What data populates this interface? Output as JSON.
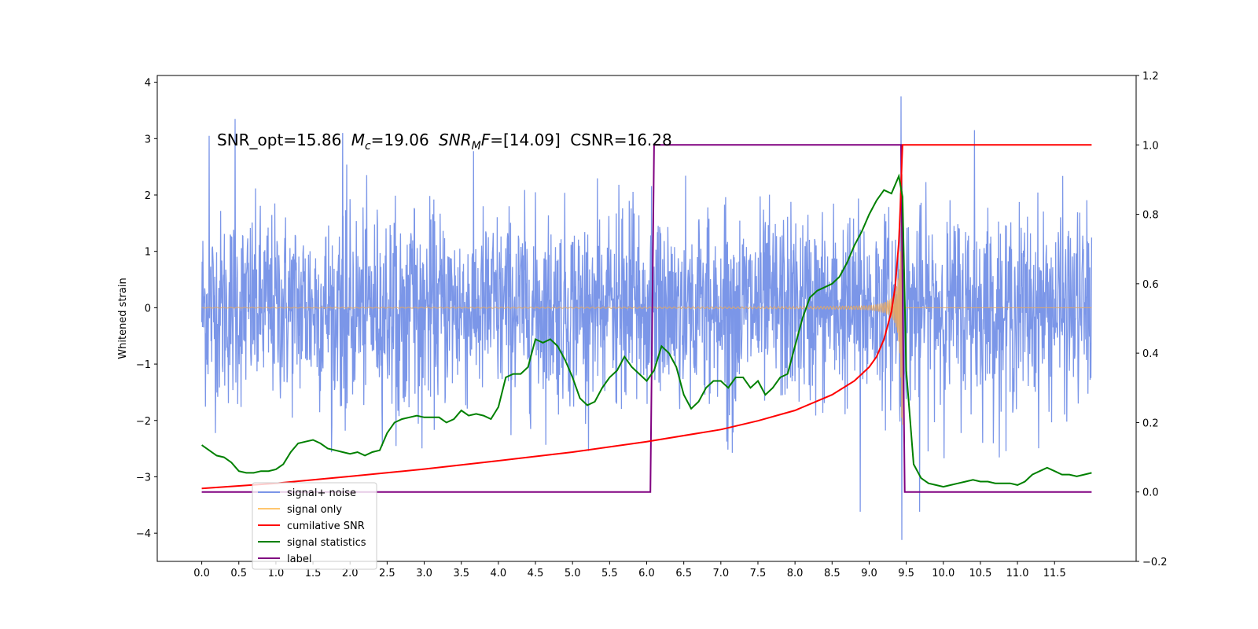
{
  "chart_data": {
    "type": "line",
    "annotation": {
      "snr_opt": "SNR_opt=15.86",
      "mc_symbol": "M",
      "mc_sub": "c",
      "mc_value": "=19.06",
      "snrmf_symbol": "SNR",
      "snrmf_sub": "M",
      "snrmf_f": "F",
      "snrmf_value": "=[14.09]",
      "csnr": "CSNR=16.28"
    },
    "ylabel_left": "Whitened strain",
    "xlabel": "",
    "x_ticks": [
      "0.0",
      "0.5",
      "1.0",
      "1.5",
      "2.0",
      "2.5",
      "3.0",
      "3.5",
      "4.0",
      "4.5",
      "5.0",
      "5.5",
      "6.0",
      "6.5",
      "7.0",
      "7.5",
      "8.0",
      "8.5",
      "9.0",
      "9.5",
      "10.0",
      "10.5",
      "11.0",
      "11.5"
    ],
    "xlim": [
      -0.6,
      12.6
    ],
    "ylim_left": [
      -4.5,
      4.12
    ],
    "y_ticks_left": [
      -4,
      -3,
      -2,
      -1,
      0,
      1,
      2,
      3,
      4
    ],
    "ylim_right": [
      -0.2,
      1.2
    ],
    "y_ticks_right": [
      "-0.2",
      "0.0",
      "0.2",
      "0.4",
      "0.6",
      "0.8",
      "1.0",
      "1.2"
    ],
    "legend": {
      "placement": "lower-left",
      "entries": [
        {
          "label": "signal+ noise",
          "color": "#7b96e8"
        },
        {
          "label": "signal only",
          "color": "#ffc66e"
        },
        {
          "label": "cumilative SNR",
          "color": "#ff0000"
        },
        {
          "label": "signal statistics",
          "color": "#008000"
        },
        {
          "label": "label",
          "color": "#800080"
        }
      ]
    },
    "series": [
      {
        "name": "signal+ noise",
        "axis": "left",
        "color": "#7b96e8",
        "x_range": [
          0,
          12.0
        ],
        "points": 2400,
        "noise_std": 0.85,
        "spikes": [
          [
            0.1,
            3.05
          ],
          [
            0.45,
            3.35
          ],
          [
            1.9,
            3.1
          ],
          [
            9.43,
            3.75
          ],
          [
            10.42,
            3.15
          ],
          [
            9.44,
            -4.12
          ],
          [
            8.88,
            -3.62
          ],
          [
            9.68,
            -3.62
          ]
        ]
      },
      {
        "name": "signal only",
        "axis": "left",
        "color": "#e8a860",
        "chirp_merger_time": 9.45,
        "peak_amplitude": 2.4
      },
      {
        "name": "cumilative SNR",
        "axis": "right",
        "color": "#ff0000",
        "x": [
          0,
          1,
          2,
          3,
          4,
          5,
          6,
          7,
          7.5,
          8,
          8.5,
          8.8,
          9.0,
          9.1,
          9.2,
          9.3,
          9.35,
          9.4,
          9.42,
          9.44,
          9.45,
          12.0
        ],
        "y": [
          0.01,
          0.025,
          0.045,
          0.066,
          0.09,
          0.115,
          0.145,
          0.18,
          0.205,
          0.235,
          0.28,
          0.32,
          0.36,
          0.39,
          0.44,
          0.52,
          0.59,
          0.72,
          0.82,
          0.95,
          1.0,
          1.0
        ]
      },
      {
        "name": "signal statistics",
        "axis": "right",
        "color": "#008000",
        "x": [
          0,
          0.1,
          0.2,
          0.3,
          0.4,
          0.5,
          0.6,
          0.7,
          0.8,
          0.9,
          1.0,
          1.1,
          1.2,
          1.3,
          1.4,
          1.5,
          1.6,
          1.7,
          1.8,
          1.9,
          2.0,
          2.1,
          2.2,
          2.3,
          2.4,
          2.5,
          2.6,
          2.7,
          2.8,
          2.9,
          3.0,
          3.1,
          3.2,
          3.3,
          3.4,
          3.5,
          3.6,
          3.7,
          3.8,
          3.9,
          4.0,
          4.1,
          4.2,
          4.3,
          4.4,
          4.5,
          4.6,
          4.7,
          4.8,
          4.9,
          5.0,
          5.1,
          5.2,
          5.3,
          5.4,
          5.5,
          5.6,
          5.7,
          5.8,
          5.9,
          6.0,
          6.1,
          6.2,
          6.3,
          6.4,
          6.5,
          6.6,
          6.7,
          6.8,
          6.9,
          7.0,
          7.1,
          7.2,
          7.3,
          7.4,
          7.5,
          7.6,
          7.7,
          7.8,
          7.9,
          8.0,
          8.1,
          8.2,
          8.3,
          8.4,
          8.5,
          8.6,
          8.7,
          8.8,
          8.9,
          9.0,
          9.1,
          9.2,
          9.3,
          9.4,
          9.45,
          9.5,
          9.6,
          9.7,
          9.8,
          9.9,
          10.0,
          10.1,
          10.2,
          10.3,
          10.4,
          10.5,
          10.6,
          10.7,
          10.8,
          10.9,
          11.0,
          11.1,
          11.2,
          11.3,
          11.4,
          11.5,
          11.6,
          11.7,
          11.8,
          11.9,
          12.0
        ],
        "y": [
          0.135,
          0.12,
          0.105,
          0.1,
          0.085,
          0.06,
          0.055,
          0.055,
          0.06,
          0.06,
          0.065,
          0.08,
          0.115,
          0.14,
          0.145,
          0.15,
          0.14,
          0.125,
          0.12,
          0.115,
          0.11,
          0.115,
          0.105,
          0.115,
          0.12,
          0.17,
          0.2,
          0.21,
          0.215,
          0.22,
          0.215,
          0.215,
          0.215,
          0.2,
          0.21,
          0.235,
          0.22,
          0.225,
          0.22,
          0.21,
          0.245,
          0.33,
          0.34,
          0.34,
          0.36,
          0.44,
          0.43,
          0.44,
          0.42,
          0.38,
          0.33,
          0.27,
          0.25,
          0.26,
          0.3,
          0.33,
          0.35,
          0.39,
          0.36,
          0.34,
          0.32,
          0.35,
          0.42,
          0.4,
          0.36,
          0.28,
          0.24,
          0.26,
          0.3,
          0.32,
          0.32,
          0.3,
          0.33,
          0.33,
          0.3,
          0.32,
          0.28,
          0.3,
          0.33,
          0.34,
          0.42,
          0.5,
          0.56,
          0.58,
          0.59,
          0.6,
          0.62,
          0.66,
          0.71,
          0.75,
          0.8,
          0.84,
          0.87,
          0.86,
          0.91,
          0.85,
          0.35,
          0.08,
          0.04,
          0.025,
          0.02,
          0.015,
          0.02,
          0.025,
          0.03,
          0.035,
          0.03,
          0.03,
          0.025,
          0.025,
          0.025,
          0.02,
          0.03,
          0.05,
          0.06,
          0.07,
          0.06,
          0.05,
          0.05,
          0.045,
          0.05,
          0.055
        ]
      },
      {
        "name": "label",
        "axis": "right",
        "color": "#800080",
        "x": [
          0,
          6.05,
          6.1,
          9.43,
          9.48,
          12.0
        ],
        "y": [
          0,
          0,
          1,
          1,
          0,
          0
        ]
      }
    ]
  }
}
